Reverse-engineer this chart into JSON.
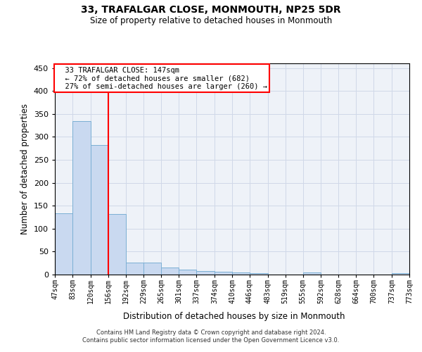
{
  "title": "33, TRAFALGAR CLOSE, MONMOUTH, NP25 5DR",
  "subtitle": "Size of property relative to detached houses in Monmouth",
  "xlabel": "Distribution of detached houses by size in Monmouth",
  "ylabel": "Number of detached properties",
  "footer_line1": "Contains HM Land Registry data © Crown copyright and database right 2024.",
  "footer_line2": "Contains public sector information licensed under the Open Government Licence v3.0.",
  "annotation_line1": "33 TRAFALGAR CLOSE: 147sqm",
  "annotation_line2": "← 72% of detached houses are smaller (682)",
  "annotation_line3": "27% of semi-detached houses are larger (260) →",
  "property_size": 147,
  "bar_edges": [
    47,
    83,
    120,
    156,
    192,
    229,
    265,
    301,
    337,
    374,
    410,
    446,
    483,
    519,
    555,
    592,
    628,
    664,
    700,
    737,
    773
  ],
  "bar_heights": [
    134,
    335,
    282,
    132,
    26,
    26,
    15,
    11,
    8,
    6,
    5,
    3,
    0,
    0,
    4,
    0,
    0,
    0,
    0,
    3
  ],
  "bar_color": "#c9d9f0",
  "bar_edge_color": "#7bafd4",
  "red_line_x": 156,
  "grid_color": "#d0d8e8",
  "background_color": "#eef2f8",
  "ylim": [
    0,
    460
  ],
  "xlim": [
    47,
    773
  ]
}
